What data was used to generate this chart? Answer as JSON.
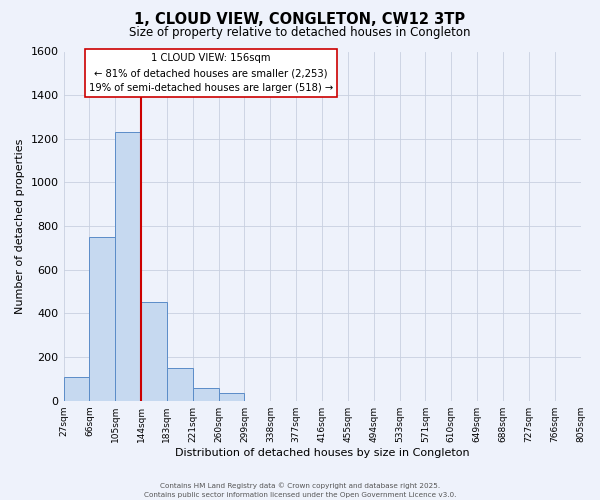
{
  "title": "1, CLOUD VIEW, CONGLETON, CW12 3TP",
  "subtitle": "Size of property relative to detached houses in Congleton",
  "xlabel": "Distribution of detached houses by size in Congleton",
  "ylabel": "Number of detached properties",
  "bar_values": [
    110,
    750,
    1230,
    450,
    150,
    60,
    35,
    0,
    0,
    0,
    0,
    0,
    0,
    0,
    0,
    0,
    0,
    0,
    0,
    0
  ],
  "bin_labels": [
    "27sqm",
    "66sqm",
    "105sqm",
    "144sqm",
    "183sqm",
    "221sqm",
    "260sqm",
    "299sqm",
    "338sqm",
    "377sqm",
    "416sqm",
    "455sqm",
    "494sqm",
    "533sqm",
    "571sqm",
    "610sqm",
    "649sqm",
    "688sqm",
    "727sqm",
    "766sqm",
    "805sqm"
  ],
  "bar_color": "#c6d9f0",
  "bar_edge_color": "#5b8cc8",
  "grid_color": "#c8d0e0",
  "background_color": "#eef2fb",
  "vline_x": 3.0,
  "vline_color": "#cc0000",
  "ylim": [
    0,
    1600
  ],
  "yticks": [
    0,
    200,
    400,
    600,
    800,
    1000,
    1200,
    1400,
    1600
  ],
  "annotation_title": "1 CLOUD VIEW: 156sqm",
  "annotation_line1": "← 81% of detached houses are smaller (2,253)",
  "annotation_line2": "19% of semi-detached houses are larger (518) →",
  "footer1": "Contains HM Land Registry data © Crown copyright and database right 2025.",
  "footer2": "Contains public sector information licensed under the Open Government Licence v3.0."
}
